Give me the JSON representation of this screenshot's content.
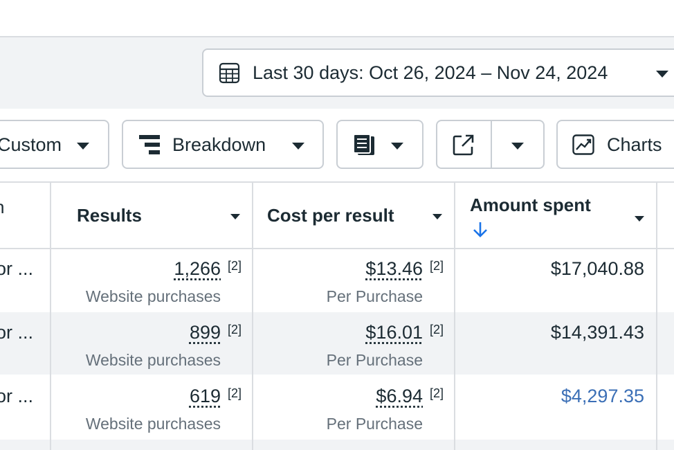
{
  "toolbar": {
    "date_range_label": "Last 30 days: Oct 26, 2024 – Nov 24, 2024",
    "columns_label": "Custom",
    "breakdown_label": "Breakdown",
    "charts_label": "Charts"
  },
  "table": {
    "first_col_header": "n",
    "headers": {
      "results": "Results",
      "cost_per_result": "Cost per result",
      "amount_spent": "Amount spent"
    },
    "rows": [
      {
        "name": "or ...",
        "results": "1,266",
        "results_note": "[2]",
        "results_type": "Website purchases",
        "cost": "$13.46",
        "cost_note": "[2]",
        "cost_type": "Per Purchase",
        "amount": "$17,040.88"
      },
      {
        "name": "or ...",
        "results": "899",
        "results_note": "[2]",
        "results_type": "Website purchases",
        "cost": "$16.01",
        "cost_note": "[2]",
        "cost_type": "Per Purchase",
        "amount": "$14,391.43"
      },
      {
        "name": "or ...",
        "results": "619",
        "results_note": "[2]",
        "results_type": "Website purchases",
        "cost": "$6.94",
        "cost_note": "[2]",
        "cost_type": "Per Purchase",
        "amount": "$4,297.35"
      }
    ]
  },
  "colors": {
    "link_blue": "#3b6fb6",
    "sort_arrow_blue": "#1a73e8",
    "border": "#dadde1",
    "alt_row": "#f1f3f5"
  },
  "icons": [
    "calendar-icon",
    "breakdown-icon",
    "reports-icon",
    "export-icon",
    "chart-icon",
    "sort-descending-icon"
  ]
}
